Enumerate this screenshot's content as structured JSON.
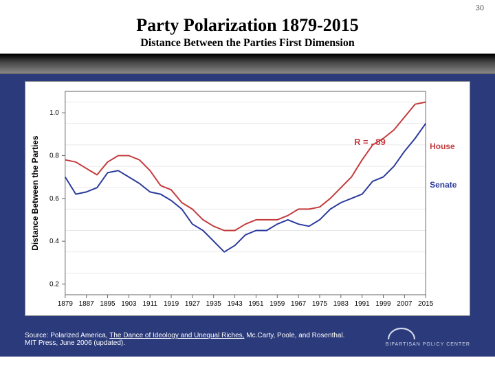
{
  "slide_number": "30",
  "title": "Party Polarization 1879-2015",
  "subtitle": "Distance Between the Parties First Dimension",
  "band_gradient": [
    "#000000",
    "#888888"
  ],
  "body_bg": "#2b3a7a",
  "chart": {
    "type": "line",
    "background_color": "#ffffff",
    "grid_color": "#e8e8e8",
    "axis_color": "#666666",
    "ylabel": "Distance Between the Parties",
    "ylabel_fontsize": 12,
    "xlim": [
      1879,
      2015
    ],
    "ylim": [
      0.15,
      1.1
    ],
    "xtick_step": 8,
    "xticks": [
      1879,
      1887,
      1895,
      1903,
      1911,
      1919,
      1927,
      1935,
      1943,
      1951,
      1959,
      1967,
      1975,
      1983,
      1991,
      1999,
      2007,
      2015
    ],
    "yticks": [
      0.2,
      0.4,
      0.6,
      0.8,
      1.0
    ],
    "tick_fontsize": 10,
    "line_width": 2,
    "correlation_label": "R = . 89",
    "correlation_color": "#c43a3c",
    "series": [
      {
        "name": "House",
        "label": "House",
        "color": "#c43a3c",
        "values": [
          [
            1879,
            0.78
          ],
          [
            1883,
            0.77
          ],
          [
            1887,
            0.74
          ],
          [
            1891,
            0.71
          ],
          [
            1895,
            0.77
          ],
          [
            1899,
            0.8
          ],
          [
            1903,
            0.8
          ],
          [
            1907,
            0.78
          ],
          [
            1911,
            0.73
          ],
          [
            1915,
            0.66
          ],
          [
            1919,
            0.64
          ],
          [
            1923,
            0.58
          ],
          [
            1927,
            0.55
          ],
          [
            1931,
            0.5
          ],
          [
            1935,
            0.47
          ],
          [
            1939,
            0.45
          ],
          [
            1943,
            0.45
          ],
          [
            1947,
            0.48
          ],
          [
            1951,
            0.5
          ],
          [
            1955,
            0.5
          ],
          [
            1959,
            0.5
          ],
          [
            1963,
            0.52
          ],
          [
            1967,
            0.55
          ],
          [
            1971,
            0.55
          ],
          [
            1975,
            0.56
          ],
          [
            1979,
            0.6
          ],
          [
            1983,
            0.65
          ],
          [
            1987,
            0.7
          ],
          [
            1991,
            0.78
          ],
          [
            1995,
            0.85
          ],
          [
            1999,
            0.88
          ],
          [
            2003,
            0.92
          ],
          [
            2007,
            0.98
          ],
          [
            2011,
            1.04
          ],
          [
            2015,
            1.05
          ]
        ]
      },
      {
        "name": "Senate",
        "label": "Senate",
        "color": "#2a3a9c",
        "values": [
          [
            1879,
            0.7
          ],
          [
            1883,
            0.62
          ],
          [
            1887,
            0.63
          ],
          [
            1891,
            0.65
          ],
          [
            1895,
            0.72
          ],
          [
            1899,
            0.73
          ],
          [
            1903,
            0.7
          ],
          [
            1907,
            0.67
          ],
          [
            1911,
            0.63
          ],
          [
            1915,
            0.62
          ],
          [
            1919,
            0.59
          ],
          [
            1923,
            0.55
          ],
          [
            1927,
            0.48
          ],
          [
            1931,
            0.45
          ],
          [
            1935,
            0.4
          ],
          [
            1939,
            0.35
          ],
          [
            1943,
            0.38
          ],
          [
            1947,
            0.43
          ],
          [
            1951,
            0.45
          ],
          [
            1955,
            0.45
          ],
          [
            1959,
            0.48
          ],
          [
            1963,
            0.5
          ],
          [
            1967,
            0.48
          ],
          [
            1971,
            0.47
          ],
          [
            1975,
            0.5
          ],
          [
            1979,
            0.55
          ],
          [
            1983,
            0.58
          ],
          [
            1987,
            0.6
          ],
          [
            1991,
            0.62
          ],
          [
            1995,
            0.68
          ],
          [
            1999,
            0.7
          ],
          [
            2003,
            0.75
          ],
          [
            2007,
            0.82
          ],
          [
            2011,
            0.88
          ],
          [
            2015,
            0.95
          ]
        ]
      }
    ]
  },
  "source_prefix": "Source: Polarized America, ",
  "source_underline": "The Dance of Ideology and Unequal Riches,",
  "source_suffix": " Mc.Carty, Poole, and Rosenthal.",
  "source_line2": "MIT Press, June 2006 (updated).",
  "logo_text": "BIPARTISAN POLICY CENTER",
  "logo_arc_color": "#cfd6ea"
}
